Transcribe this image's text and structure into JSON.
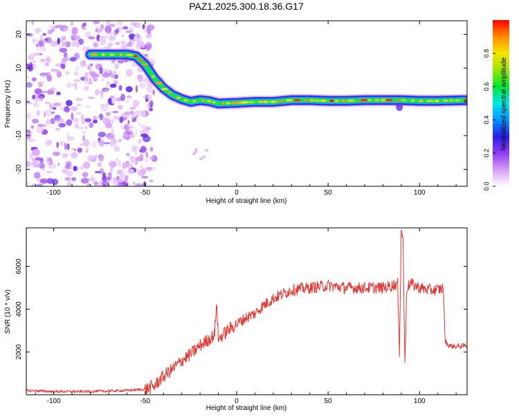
{
  "title": "PAZ1.2025.300.18.36.G17",
  "chart_data": [
    {
      "type": "heatmap",
      "name": "spectrogram",
      "xlabel": "Height of straight line (km)",
      "ylabel": "Frequency (Hz)",
      "xlim": [
        -115,
        126
      ],
      "ylim": [
        -25,
        24
      ],
      "xticks": [
        -100,
        -50,
        0,
        50,
        100
      ],
      "yticks": [
        -20,
        -10,
        0,
        10,
        20
      ],
      "ridge": {
        "x": [
          -80,
          -70,
          -60,
          -55,
          -50,
          -45,
          -40,
          -35,
          -30,
          -25,
          -20,
          -15,
          -10,
          0,
          10,
          20,
          30,
          40,
          50,
          60,
          70,
          80,
          90,
          100,
          110,
          126
        ],
        "freq": [
          14,
          14,
          14,
          13.5,
          11,
          7,
          4,
          2,
          0.8,
          0,
          0.5,
          0.2,
          -0.5,
          -0.3,
          0,
          0,
          0.5,
          0.5,
          0.3,
          0.3,
          0.5,
          0.5,
          0.5,
          0.3,
          0.3,
          0.5
        ]
      },
      "colorbar": {
        "label": "Normalized spectral amplitude",
        "ticks": [
          0.0,
          0.2,
          0.4,
          0.6,
          0.8
        ],
        "range": [
          0,
          1
        ],
        "colors": [
          "#ffffff",
          "#d59cf7",
          "#8f3bf0",
          "#2a1ee6",
          "#0096ff",
          "#00e6e6",
          "#00e632",
          "#9be600",
          "#f5e600",
          "#ff8c00",
          "#ff0000"
        ]
      }
    },
    {
      "type": "line",
      "name": "snr",
      "xlabel": "Height of straight line (km)",
      "ylabel": "SNR (10 * v/v)",
      "xlim": [
        -115,
        126
      ],
      "ylim": [
        0,
        7800
      ],
      "xticks": [
        -100,
        -50,
        0,
        50,
        100
      ],
      "yticks": [
        2000,
        4000,
        6000
      ],
      "color": "#e8302c",
      "series": [
        {
          "name": "SNR",
          "x": [
            -115,
            -100,
            -80,
            -60,
            -50,
            -45,
            -42,
            -38,
            -35,
            -30,
            -25,
            -20,
            -15,
            -12,
            -11,
            -10,
            -5,
            0,
            5,
            10,
            15,
            20,
            25,
            30,
            40,
            50,
            60,
            70,
            80,
            85,
            88,
            89,
            90,
            91,
            92,
            93,
            95,
            100,
            105,
            110,
            113,
            114,
            116,
            120,
            126
          ],
          "y": [
            200,
            150,
            150,
            200,
            250,
            400,
            700,
            1000,
            1200,
            1600,
            1900,
            2300,
            2600,
            2800,
            4400,
            2600,
            3000,
            3300,
            3600,
            3800,
            4200,
            4500,
            4700,
            4900,
            5000,
            5100,
            5000,
            5000,
            5000,
            5100,
            5200,
            2000,
            7800,
            7200,
            1300,
            5000,
            5200,
            5000,
            4900,
            4900,
            5000,
            2500,
            2300,
            2250,
            2300
          ]
        }
      ]
    }
  ]
}
